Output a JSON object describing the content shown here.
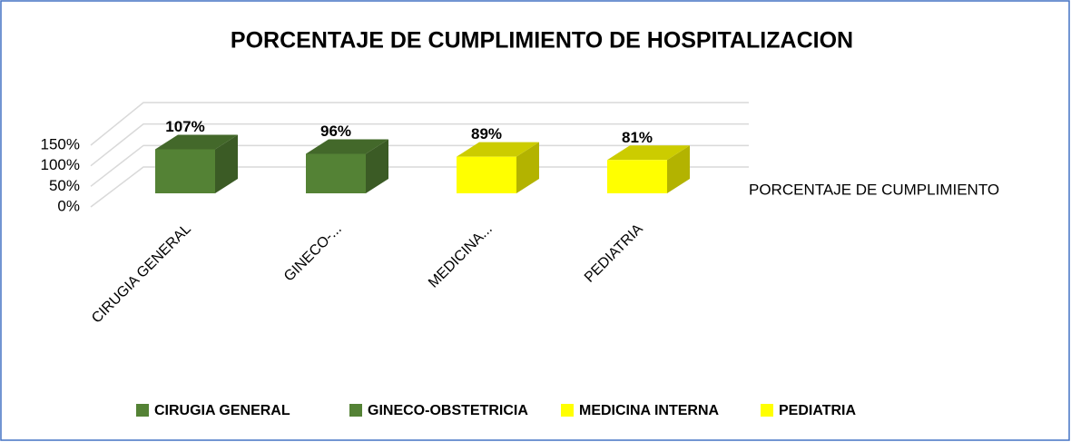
{
  "chart_data": {
    "type": "bar3d",
    "title": "PORCENTAJE DE CUMPLIMIENTO DE HOSPITALIZACION",
    "categories": [
      "CIRUGIA GENERAL",
      "GINECO-...",
      "MEDICINA...",
      "PEDIATRIA"
    ],
    "series": [
      {
        "name": "PORCENTAJE DE CUMPLIMIENTO",
        "values": [
          107,
          96,
          89,
          81
        ],
        "value_labels": [
          "107%",
          "96%",
          "89%",
          "81%"
        ],
        "colors": [
          "#548235",
          "#548235",
          "#ffff00",
          "#ffff00"
        ]
      }
    ],
    "legend": [
      {
        "name": "CIRUGIA GENERAL",
        "color": "#548235"
      },
      {
        "name": "GINECO-OBSTETRICIA",
        "color": "#548235"
      },
      {
        "name": "MEDICINA INTERNA",
        "color": "#ffff00"
      },
      {
        "name": "PEDIATRIA",
        "color": "#ffff00"
      }
    ],
    "ylim": [
      0,
      150
    ],
    "yticks": [
      {
        "value": 0,
        "label": "0%"
      },
      {
        "value": 50,
        "label": "50%"
      },
      {
        "value": 100,
        "label": "100%"
      },
      {
        "value": 150,
        "label": "150%"
      }
    ],
    "grid": true
  }
}
